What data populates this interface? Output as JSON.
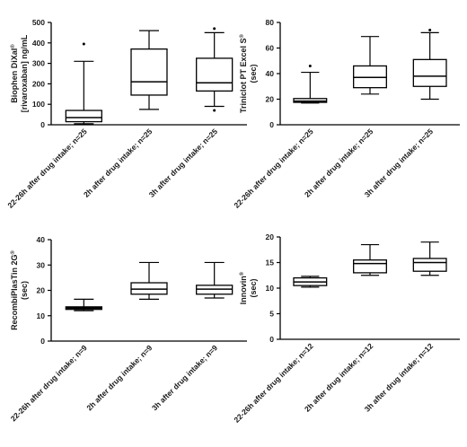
{
  "chart_data": [
    {
      "type": "box",
      "ylabel": {
        "line1": "Biophen DiXaI",
        "sup": "®",
        "line2": "[rivaroxaban] ng/mL"
      },
      "ylim": [
        0,
        500
      ],
      "yticks": [
        0,
        100,
        200,
        300,
        400,
        500
      ],
      "grid": false,
      "categories": [
        "22-26h after drug intake; n=25",
        "2h after drug intake; n=25",
        "3h after drug intake; n=25"
      ],
      "series": [
        {
          "whisker_low": 5,
          "q1": 15,
          "median": 35,
          "q3": 70,
          "whisker_high": 310,
          "outliers": [
            395
          ]
        },
        {
          "whisker_low": 75,
          "q1": 145,
          "median": 210,
          "q3": 370,
          "whisker_high": 460,
          "outliers": []
        },
        {
          "whisker_low": 90,
          "q1": 165,
          "median": 205,
          "q3": 325,
          "whisker_high": 450,
          "outliers": [
            470,
            70
          ]
        }
      ]
    },
    {
      "type": "box",
      "ylabel": {
        "line1": "Triniclot PT Excel S",
        "sup": "®",
        "line2": "(sec)"
      },
      "ylim": [
        0,
        80
      ],
      "yticks": [
        0,
        20,
        40,
        60,
        80
      ],
      "grid": false,
      "categories": [
        "22-26h after drug intake; n=25",
        "2h after drug intake; n=25",
        "3h after drug intake; n=25"
      ],
      "series": [
        {
          "whisker_low": 17,
          "q1": 17.5,
          "median": 18.5,
          "q3": 20.5,
          "whisker_high": 41,
          "outliers": [
            46
          ]
        },
        {
          "whisker_low": 24,
          "q1": 29,
          "median": 37,
          "q3": 46,
          "whisker_high": 69,
          "outliers": []
        },
        {
          "whisker_low": 20,
          "q1": 30,
          "median": 38,
          "q3": 51,
          "whisker_high": 72,
          "outliers": [
            74
          ]
        }
      ]
    },
    {
      "type": "box",
      "ylabel": {
        "line1": "RecombiPlasTin 2G",
        "sup": "®",
        "line2": "(sec)"
      },
      "ylim": [
        0,
        40
      ],
      "yticks": [
        0,
        10,
        20,
        30,
        40
      ],
      "grid": false,
      "categories": [
        "22-26h after drug intake; n=9",
        "2h after drug intake; n=9",
        "3h after drug intake; n=9"
      ],
      "series": [
        {
          "whisker_low": 12,
          "q1": 12.5,
          "median": 13,
          "q3": 13.5,
          "whisker_high": 16.5,
          "outliers": []
        },
        {
          "whisker_low": 16.5,
          "q1": 18.5,
          "median": 20.5,
          "q3": 23,
          "whisker_high": 31,
          "outliers": []
        },
        {
          "whisker_low": 17,
          "q1": 18.5,
          "median": 20.5,
          "q3": 22,
          "whisker_high": 31,
          "outliers": []
        }
      ]
    },
    {
      "type": "box",
      "ylabel": {
        "line1": "Innovin",
        "sup": "®",
        "line2": "(sec)"
      },
      "ylim": [
        0,
        20
      ],
      "yticks": [
        0,
        5,
        10,
        15,
        20
      ],
      "grid": false,
      "categories": [
        "22-26h after drug intake; n=12",
        "2h after drug intake; n=12",
        "3h after drug intake; n=12"
      ],
      "series": [
        {
          "whisker_low": 10.2,
          "q1": 10.5,
          "median": 11.2,
          "q3": 12,
          "whisker_high": 12.3,
          "outliers": []
        },
        {
          "whisker_low": 12.5,
          "q1": 13,
          "median": 14.8,
          "q3": 15.5,
          "whisker_high": 18.5,
          "outliers": []
        },
        {
          "whisker_low": 12.5,
          "q1": 13.3,
          "median": 15,
          "q3": 15.8,
          "whisker_high": 19,
          "outliers": []
        }
      ]
    }
  ]
}
